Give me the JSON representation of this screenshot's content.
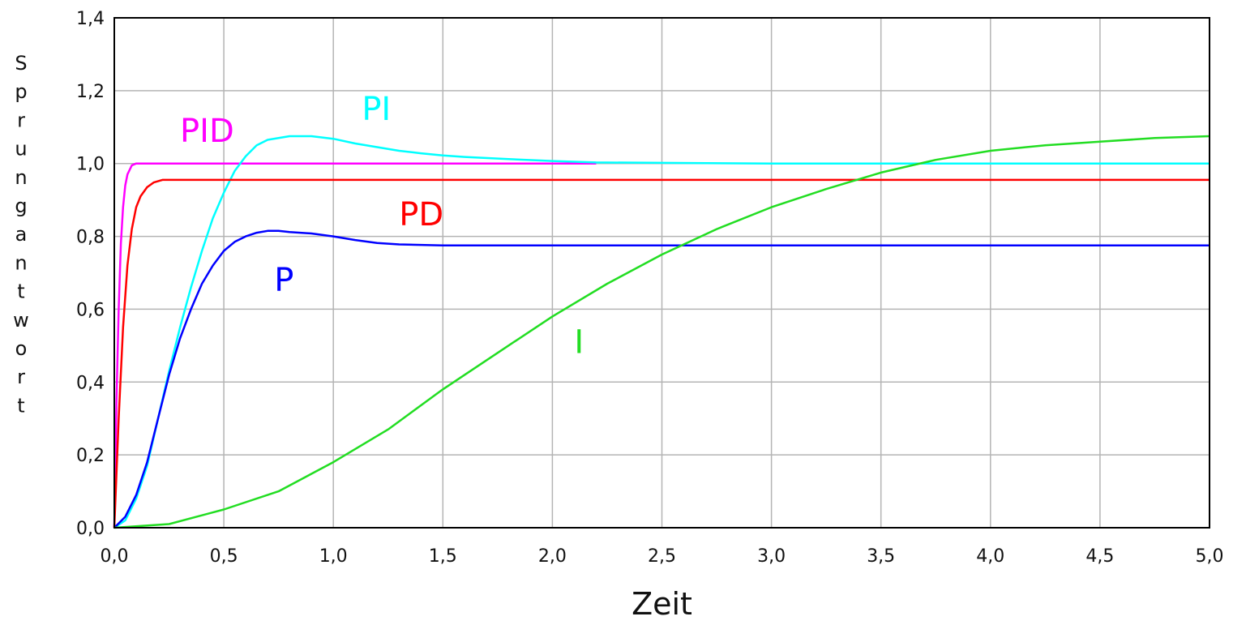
{
  "chart_data": {
    "type": "line",
    "xlabel": "Zeit",
    "ylabel": "Sprungantwort",
    "xlim": [
      0,
      5
    ],
    "ylim": [
      0,
      1.4
    ],
    "x_ticks": [
      "0,0",
      "0,5",
      "1,0",
      "1,5",
      "2,0",
      "2,5",
      "3,0",
      "3,5",
      "4,0",
      "4,5",
      "5,0"
    ],
    "y_ticks": [
      "0,0",
      "0,2",
      "0,4",
      "0,6",
      "0,8",
      "1,0",
      "1,2",
      "1,4"
    ],
    "grid": true,
    "series": [
      {
        "name": "PID",
        "color": "#ff00ff",
        "x": [
          0,
          0.01,
          0.02,
          0.03,
          0.04,
          0.05,
          0.06,
          0.08,
          0.1,
          2.2
        ],
        "y": [
          0,
          0.35,
          0.6,
          0.78,
          0.88,
          0.94,
          0.97,
          0.995,
          1.0,
          1.0
        ]
      },
      {
        "name": "PI",
        "color": "#00ffff",
        "x": [
          0,
          0.05,
          0.1,
          0.15,
          0.2,
          0.25,
          0.3,
          0.35,
          0.4,
          0.45,
          0.5,
          0.55,
          0.6,
          0.65,
          0.7,
          0.8,
          0.9,
          1.0,
          1.1,
          1.2,
          1.3,
          1.4,
          1.5,
          1.6,
          1.8,
          2.0,
          2.2,
          3.0,
          4.0,
          5.0
        ],
        "y": [
          0,
          0.02,
          0.08,
          0.17,
          0.3,
          0.43,
          0.55,
          0.66,
          0.76,
          0.85,
          0.92,
          0.98,
          1.02,
          1.05,
          1.065,
          1.075,
          1.075,
          1.068,
          1.055,
          1.045,
          1.035,
          1.028,
          1.022,
          1.018,
          1.012,
          1.007,
          1.003,
          1.0,
          1.0,
          1.0
        ]
      },
      {
        "name": "PD",
        "color": "#ff0000",
        "x": [
          0,
          0.02,
          0.04,
          0.06,
          0.08,
          0.1,
          0.12,
          0.15,
          0.18,
          0.22,
          0.3,
          5.0
        ],
        "y": [
          0,
          0.3,
          0.55,
          0.72,
          0.82,
          0.88,
          0.91,
          0.935,
          0.948,
          0.955,
          0.955,
          0.955
        ]
      },
      {
        "name": "P",
        "color": "#0000ff",
        "x": [
          0,
          0.05,
          0.1,
          0.15,
          0.2,
          0.25,
          0.3,
          0.35,
          0.4,
          0.45,
          0.5,
          0.55,
          0.6,
          0.65,
          0.7,
          0.75,
          0.8,
          0.9,
          1.0,
          1.1,
          1.2,
          1.3,
          1.5,
          2.0,
          3.0,
          5.0
        ],
        "y": [
          0,
          0.03,
          0.09,
          0.18,
          0.3,
          0.42,
          0.52,
          0.6,
          0.67,
          0.72,
          0.76,
          0.785,
          0.8,
          0.81,
          0.815,
          0.815,
          0.812,
          0.808,
          0.8,
          0.79,
          0.782,
          0.778,
          0.775,
          0.775,
          0.775,
          0.775
        ]
      },
      {
        "name": "I",
        "color": "#22dd22",
        "x": [
          0,
          0.25,
          0.5,
          0.75,
          1.0,
          1.25,
          1.5,
          1.75,
          2.0,
          2.25,
          2.5,
          2.75,
          3.0,
          3.25,
          3.5,
          3.75,
          4.0,
          4.25,
          4.5,
          4.75,
          5.0
        ],
        "y": [
          0,
          0.01,
          0.05,
          0.1,
          0.18,
          0.27,
          0.38,
          0.48,
          0.58,
          0.67,
          0.75,
          0.82,
          0.88,
          0.93,
          0.975,
          1.01,
          1.035,
          1.05,
          1.06,
          1.07,
          1.075
        ]
      }
    ],
    "annotations": [
      {
        "text": "PID",
        "color": "#ff00ff",
        "x": 0.3,
        "y": 1.06
      },
      {
        "text": "PI",
        "color": "#00ffff",
        "x": 1.13,
        "y": 1.12
      },
      {
        "text": "PD",
        "color": "#ff0000",
        "x": 1.3,
        "y": 0.83
      },
      {
        "text": "P",
        "color": "#0000ff",
        "x": 0.73,
        "y": 0.65
      },
      {
        "text": "I",
        "color": "#22dd22",
        "x": 2.1,
        "y": 0.48
      }
    ]
  }
}
